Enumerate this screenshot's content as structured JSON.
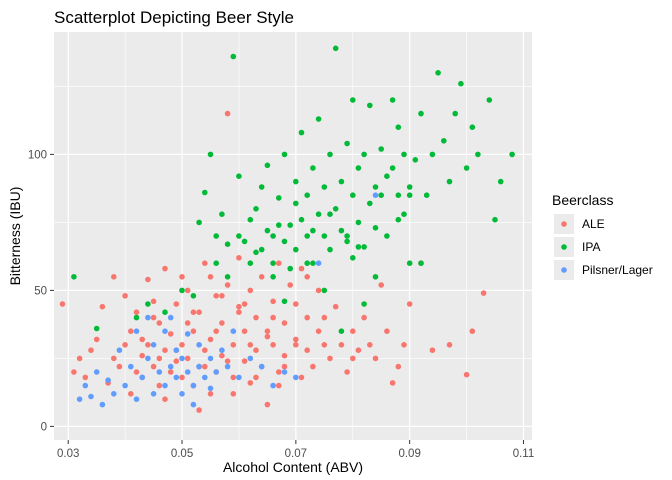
{
  "chart_data": {
    "type": "scatter",
    "title": "Scatterplot Depicting Beer Style",
    "xlabel": "Alcohol Content (ABV)",
    "ylabel": "Bitterness (IBU)",
    "xlim": [
      0.0275,
      0.1115
    ],
    "ylim": [
      -5,
      145
    ],
    "x_ticks": [
      0.03,
      0.05,
      0.07,
      0.09,
      0.11
    ],
    "x_tick_labels": [
      "0.03",
      "0.05",
      "0.07",
      "0.09",
      "0.11"
    ],
    "y_ticks": [
      0,
      50,
      100
    ],
    "y_tick_labels": [
      "0",
      "50",
      "100"
    ],
    "grid": true,
    "legend": {
      "title": "Beerclass",
      "placement": "right"
    },
    "colors": {
      "ALE": "#F8766D",
      "IPA": "#00BA38",
      "Pilsner/Lager": "#619CFF",
      "panel": "#EBEBEB",
      "grid": "#FFFFFF"
    },
    "series": [
      {
        "name": "ALE",
        "color": "#F8766D",
        "points": [
          [
            0.029,
            45
          ],
          [
            0.031,
            20
          ],
          [
            0.032,
            25
          ],
          [
            0.033,
            18
          ],
          [
            0.034,
            28
          ],
          [
            0.035,
            32
          ],
          [
            0.036,
            44
          ],
          [
            0.037,
            16
          ],
          [
            0.038,
            55
          ],
          [
            0.038,
            25
          ],
          [
            0.039,
            22
          ],
          [
            0.04,
            30
          ],
          [
            0.04,
            48
          ],
          [
            0.041,
            12
          ],
          [
            0.041,
            35
          ],
          [
            0.042,
            20
          ],
          [
            0.042,
            42
          ],
          [
            0.043,
            26
          ],
          [
            0.043,
            18
          ],
          [
            0.044,
            54
          ],
          [
            0.044,
            30
          ],
          [
            0.045,
            22
          ],
          [
            0.045,
            46
          ],
          [
            0.046,
            15
          ],
          [
            0.046,
            38
          ],
          [
            0.047,
            28
          ],
          [
            0.047,
            58
          ],
          [
            0.048,
            20
          ],
          [
            0.048,
            34
          ],
          [
            0.049,
            24
          ],
          [
            0.049,
            45
          ],
          [
            0.05,
            18
          ],
          [
            0.05,
            30
          ],
          [
            0.051,
            50
          ],
          [
            0.051,
            25
          ],
          [
            0.052,
            35
          ],
          [
            0.052,
            15
          ],
          [
            0.053,
            42
          ],
          [
            0.053,
            22
          ],
          [
            0.054,
            60
          ],
          [
            0.054,
            28
          ],
          [
            0.055,
            32
          ],
          [
            0.055,
            12
          ],
          [
            0.056,
            48
          ],
          [
            0.056,
            20
          ],
          [
            0.057,
            38
          ],
          [
            0.057,
            26
          ],
          [
            0.058,
            115
          ],
          [
            0.058,
            52
          ],
          [
            0.059,
            30
          ],
          [
            0.059,
            18
          ],
          [
            0.06,
            44
          ],
          [
            0.06,
            62
          ],
          [
            0.061,
            24
          ],
          [
            0.061,
            35
          ],
          [
            0.062,
            50
          ],
          [
            0.062,
            16
          ],
          [
            0.063,
            40
          ],
          [
            0.063,
            28
          ],
          [
            0.064,
            55
          ],
          [
            0.064,
            22
          ],
          [
            0.065,
            33
          ],
          [
            0.065,
            8
          ],
          [
            0.066,
            46
          ],
          [
            0.066,
            30
          ],
          [
            0.067,
            60
          ],
          [
            0.067,
            20
          ],
          [
            0.068,
            38
          ],
          [
            0.068,
            26
          ],
          [
            0.069,
            52
          ],
          [
            0.07,
            32
          ],
          [
            0.07,
            45
          ],
          [
            0.071,
            18
          ],
          [
            0.071,
            58
          ],
          [
            0.072,
            28
          ],
          [
            0.072,
            40
          ],
          [
            0.073,
            22
          ],
          [
            0.074,
            50
          ],
          [
            0.074,
            35
          ],
          [
            0.075,
            30
          ],
          [
            0.076,
            25
          ],
          [
            0.077,
            44
          ],
          [
            0.078,
            30
          ],
          [
            0.079,
            20
          ],
          [
            0.08,
            35
          ],
          [
            0.081,
            28
          ],
          [
            0.082,
            40
          ],
          [
            0.083,
            30
          ],
          [
            0.084,
            25
          ],
          [
            0.085,
            52
          ],
          [
            0.086,
            35
          ],
          [
            0.087,
            16
          ],
          [
            0.088,
            22
          ],
          [
            0.089,
            30
          ],
          [
            0.09,
            45
          ],
          [
            0.092,
            60
          ],
          [
            0.094,
            28
          ],
          [
            0.097,
            30
          ],
          [
            0.1,
            19
          ],
          [
            0.101,
            35
          ],
          [
            0.103,
            49
          ],
          [
            0.047,
            10
          ],
          [
            0.052,
            42
          ],
          [
            0.056,
            35
          ],
          [
            0.061,
            45
          ],
          [
            0.066,
            40
          ],
          [
            0.043,
            32
          ],
          [
            0.049,
            28
          ],
          [
            0.054,
            22
          ],
          [
            0.058,
            24
          ],
          [
            0.063,
            18
          ],
          [
            0.068,
            22
          ],
          [
            0.045,
            40
          ],
          [
            0.05,
            55
          ],
          [
            0.055,
            55
          ],
          [
            0.06,
            42
          ],
          [
            0.065,
            35
          ],
          [
            0.07,
            30
          ],
          [
            0.053,
            6
          ],
          [
            0.059,
            12
          ],
          [
            0.046,
            25
          ],
          [
            0.051,
            38
          ],
          [
            0.057,
            48
          ],
          [
            0.062,
            30
          ],
          [
            0.067,
            15
          ],
          [
            0.072,
            55
          ],
          [
            0.075,
            40
          ],
          [
            0.08,
            25
          ]
        ]
      },
      {
        "name": "IPA",
        "color": "#00BA38",
        "points": [
          [
            0.031,
            55
          ],
          [
            0.035,
            36
          ],
          [
            0.042,
            40
          ],
          [
            0.044,
            45
          ],
          [
            0.047,
            42
          ],
          [
            0.05,
            50
          ],
          [
            0.052,
            48
          ],
          [
            0.053,
            75
          ],
          [
            0.054,
            86
          ],
          [
            0.055,
            100
          ],
          [
            0.056,
            60
          ],
          [
            0.057,
            78
          ],
          [
            0.058,
            67
          ],
          [
            0.059,
            136
          ],
          [
            0.06,
            70
          ],
          [
            0.06,
            92
          ],
          [
            0.061,
            68
          ],
          [
            0.062,
            76
          ],
          [
            0.063,
            80
          ],
          [
            0.063,
            64
          ],
          [
            0.064,
            88
          ],
          [
            0.065,
            72
          ],
          [
            0.065,
            96
          ],
          [
            0.066,
            70
          ],
          [
            0.066,
            60
          ],
          [
            0.067,
            84
          ],
          [
            0.068,
            68
          ],
          [
            0.068,
            100
          ],
          [
            0.069,
            74
          ],
          [
            0.07,
            65
          ],
          [
            0.07,
            90
          ],
          [
            0.071,
            76
          ],
          [
            0.071,
            108
          ],
          [
            0.072,
            70
          ],
          [
            0.072,
            85
          ],
          [
            0.073,
            60
          ],
          [
            0.073,
            95
          ],
          [
            0.074,
            78
          ],
          [
            0.074,
            113
          ],
          [
            0.075,
            70
          ],
          [
            0.075,
            88
          ],
          [
            0.076,
            65
          ],
          [
            0.076,
            100
          ],
          [
            0.077,
            139
          ],
          [
            0.077,
            80
          ],
          [
            0.078,
            72
          ],
          [
            0.078,
            90
          ],
          [
            0.079,
            104
          ],
          [
            0.079,
            68
          ],
          [
            0.08,
            85
          ],
          [
            0.08,
            120
          ],
          [
            0.081,
            75
          ],
          [
            0.081,
            95
          ],
          [
            0.082,
            66
          ],
          [
            0.082,
            100
          ],
          [
            0.083,
            82
          ],
          [
            0.083,
            118
          ],
          [
            0.084,
            73
          ],
          [
            0.084,
            88
          ],
          [
            0.085,
            85
          ],
          [
            0.085,
            102
          ],
          [
            0.086,
            70
          ],
          [
            0.087,
            95
          ],
          [
            0.087,
            120
          ],
          [
            0.088,
            85
          ],
          [
            0.088,
            110
          ],
          [
            0.089,
            100
          ],
          [
            0.089,
            78
          ],
          [
            0.09,
            85
          ],
          [
            0.09,
            60
          ],
          [
            0.091,
            98
          ],
          [
            0.092,
            115
          ],
          [
            0.092,
            60
          ],
          [
            0.093,
            85
          ],
          [
            0.094,
            100
          ],
          [
            0.095,
            130
          ],
          [
            0.096,
            105
          ],
          [
            0.097,
            90
          ],
          [
            0.098,
            115
          ],
          [
            0.099,
            126
          ],
          [
            0.1,
            95
          ],
          [
            0.101,
            110
          ],
          [
            0.102,
            100
          ],
          [
            0.104,
            120
          ],
          [
            0.105,
            76
          ],
          [
            0.106,
            90
          ],
          [
            0.108,
            100
          ],
          [
            0.056,
            70
          ],
          [
            0.058,
            55
          ],
          [
            0.062,
            60
          ],
          [
            0.064,
            65
          ],
          [
            0.066,
            55
          ],
          [
            0.069,
            58
          ],
          [
            0.072,
            60
          ],
          [
            0.075,
            50
          ],
          [
            0.078,
            35
          ],
          [
            0.08,
            62
          ],
          [
            0.082,
            45
          ],
          [
            0.084,
            55
          ],
          [
            0.086,
            92
          ],
          [
            0.088,
            76
          ],
          [
            0.09,
            88
          ],
          [
            0.067,
            74
          ],
          [
            0.068,
            46
          ],
          [
            0.07,
            82
          ],
          [
            0.073,
            72
          ],
          [
            0.076,
            78
          ],
          [
            0.079,
            70
          ],
          [
            0.081,
            66
          ]
        ]
      },
      {
        "name": "Pilsner/Lager",
        "color": "#619CFF",
        "points": [
          [
            0.032,
            10
          ],
          [
            0.033,
            15
          ],
          [
            0.034,
            11
          ],
          [
            0.035,
            20
          ],
          [
            0.036,
            8
          ],
          [
            0.037,
            17
          ],
          [
            0.038,
            12
          ],
          [
            0.039,
            28
          ],
          [
            0.04,
            15
          ],
          [
            0.041,
            22
          ],
          [
            0.042,
            10
          ],
          [
            0.042,
            35
          ],
          [
            0.043,
            18
          ],
          [
            0.044,
            25
          ],
          [
            0.045,
            12
          ],
          [
            0.045,
            30
          ],
          [
            0.046,
            20
          ],
          [
            0.047,
            15
          ],
          [
            0.047,
            35
          ],
          [
            0.048,
            22
          ],
          [
            0.049,
            18
          ],
          [
            0.049,
            28
          ],
          [
            0.05,
            25
          ],
          [
            0.05,
            12
          ],
          [
            0.051,
            20
          ],
          [
            0.051,
            34
          ],
          [
            0.052,
            15
          ],
          [
            0.053,
            22
          ],
          [
            0.053,
            30
          ],
          [
            0.054,
            18
          ],
          [
            0.055,
            25
          ],
          [
            0.055,
            14
          ],
          [
            0.056,
            20
          ],
          [
            0.057,
            28
          ],
          [
            0.058,
            22
          ],
          [
            0.059,
            35
          ],
          [
            0.06,
            18
          ],
          [
            0.062,
            25
          ],
          [
            0.064,
            22
          ],
          [
            0.066,
            15
          ],
          [
            0.068,
            20
          ],
          [
            0.07,
            18
          ],
          [
            0.074,
            60
          ],
          [
            0.084,
            85
          ],
          [
            0.048,
            40
          ],
          [
            0.052,
            8
          ],
          [
            0.044,
            40
          ]
        ]
      }
    ]
  }
}
